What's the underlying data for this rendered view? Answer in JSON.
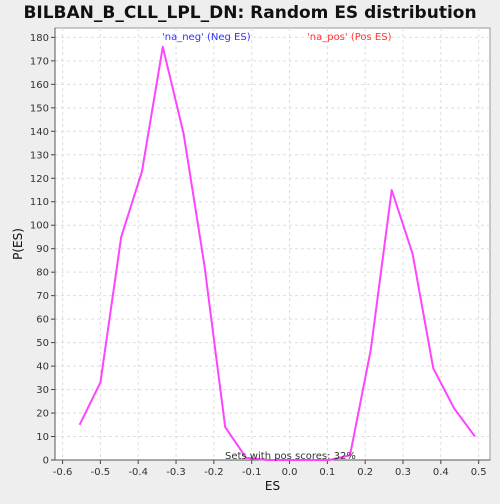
{
  "chart_data": {
    "type": "line",
    "title": "BILBAN_B_CLL_LPL_DN: Random ES distribution",
    "xlabel": "ES",
    "ylabel": "P(ES)",
    "xlim": [
      -0.62,
      0.53
    ],
    "ylim": [
      0,
      184
    ],
    "grid": true,
    "x_ticks": [
      -0.6,
      -0.5,
      -0.4,
      -0.3,
      -0.2,
      -0.1,
      0.0,
      0.1,
      0.2,
      0.3,
      0.4,
      0.5
    ],
    "x_tick_labels": [
      "-0.6",
      "-0.5",
      "-0.4",
      "-0.3",
      "-0.2",
      "-0.1",
      "0.0",
      "0.1",
      "0.2",
      "0.3",
      "0.4",
      "0.5"
    ],
    "y_ticks": [
      0,
      10,
      20,
      30,
      40,
      50,
      60,
      70,
      80,
      90,
      100,
      110,
      120,
      130,
      140,
      150,
      160,
      170,
      180
    ],
    "y_tick_labels": [
      "0",
      "10",
      "20",
      "30",
      "40",
      "50",
      "60",
      "70",
      "80",
      "90",
      "100",
      "110",
      "120",
      "130",
      "140",
      "150",
      "160",
      "170",
      "180"
    ],
    "legend": [
      {
        "label": "'na_neg' (Neg ES)",
        "color": "#3333ff",
        "placement": "top-left"
      },
      {
        "label": "'na_pos' (Pos ES)",
        "color": "#ff3333",
        "placement": "top-right"
      }
    ],
    "annotation": "Sets with pos scores: 32%",
    "series": [
      {
        "color": "#ff44ff",
        "x": [
          -0.555,
          -0.5,
          -0.445,
          -0.39,
          -0.335,
          -0.28,
          -0.225,
          -0.17,
          -0.115,
          -0.06,
          -0.005,
          0.05,
          0.105,
          0.16,
          0.215,
          0.27,
          0.325,
          0.38,
          0.435,
          0.49
        ],
        "y": [
          15,
          33,
          95,
          123,
          176,
          139,
          83,
          14,
          1,
          0,
          0,
          0,
          0,
          2,
          47,
          115,
          88,
          39,
          22,
          10
        ]
      }
    ]
  }
}
